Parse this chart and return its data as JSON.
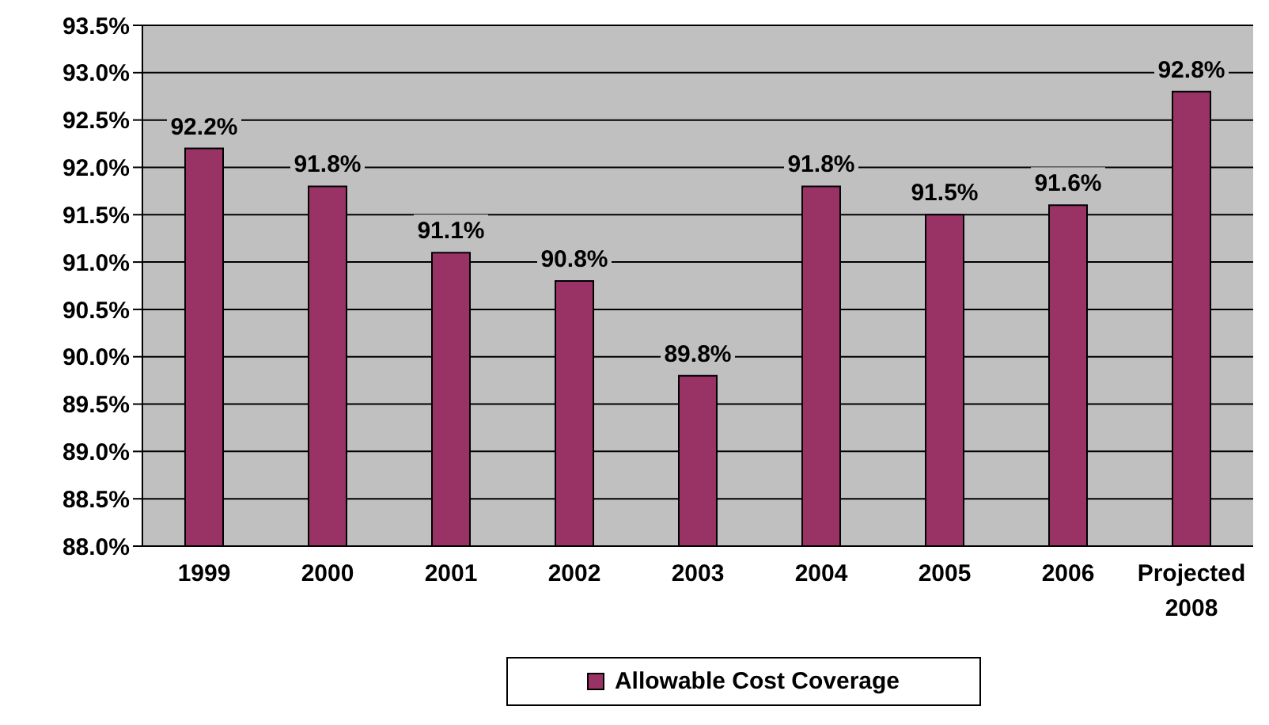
{
  "chart_data": {
    "type": "bar",
    "categories": [
      "1999",
      "2000",
      "2001",
      "2002",
      "2003",
      "2004",
      "2005",
      "2006",
      "Projected 2008"
    ],
    "series": [
      {
        "name": "Allowable Cost Coverage",
        "color": "#993366",
        "values": [
          92.2,
          91.8,
          91.1,
          90.8,
          89.8,
          91.8,
          91.5,
          91.6,
          92.8
        ],
        "value_labels": [
          "92.2%",
          "91.8%",
          "91.1%",
          "90.8%",
          "89.8%",
          "91.8%",
          "91.5%",
          "91.6%",
          "92.8%"
        ]
      }
    ],
    "ylim": [
      88,
      93.5
    ],
    "yticks": [
      {
        "value": 88,
        "label": "88.0%"
      },
      {
        "value": 88.5,
        "label": "88.5%"
      },
      {
        "value": 89,
        "label": "89.0%"
      },
      {
        "value": 89.5,
        "label": "89.5%"
      },
      {
        "value": 90,
        "label": "90.0%"
      },
      {
        "value": 90.5,
        "label": "90.5%"
      },
      {
        "value": 91,
        "label": "91.0%"
      },
      {
        "value": 91.5,
        "label": "91.5%"
      },
      {
        "value": 92,
        "label": "92.0%"
      },
      {
        "value": 92.5,
        "label": "92.5%"
      },
      {
        "value": 93,
        "label": "93.0%"
      },
      {
        "value": 93.5,
        "label": "93.5%"
      }
    ],
    "grid": "y",
    "legend": "bottom"
  }
}
